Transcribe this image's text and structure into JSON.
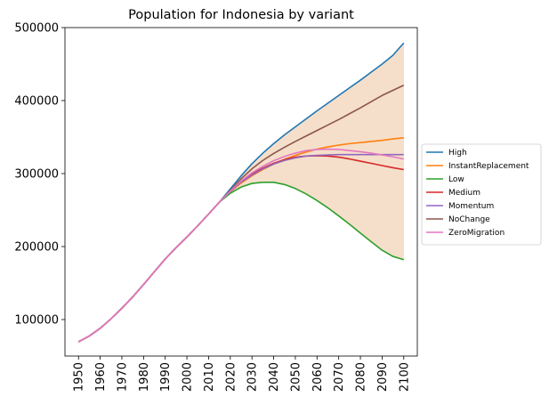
{
  "chart_data": {
    "type": "line",
    "title": "Population for Indonesia by variant",
    "xlabel": "",
    "ylabel": "",
    "xlim": [
      1943.75,
      2106.25
    ],
    "ylim": [
      50000,
      500000
    ],
    "x_ticks": [
      1950,
      1960,
      1970,
      1980,
      1990,
      2000,
      2010,
      2020,
      2030,
      2040,
      2050,
      2060,
      2070,
      2080,
      2090,
      2100
    ],
    "y_ticks": [
      100000,
      200000,
      300000,
      400000,
      500000
    ],
    "grid": false,
    "legend_position": "center-right outside",
    "band": {
      "lower_series": "Low",
      "upper_series": "High",
      "color": "#f5dfca"
    },
    "x": [
      1950,
      1955,
      1960,
      1965,
      1970,
      1975,
      1980,
      1985,
      1990,
      1995,
      2000,
      2005,
      2010,
      2015,
      2020,
      2025,
      2030,
      2035,
      2040,
      2045,
      2050,
      2055,
      2060,
      2065,
      2070,
      2075,
      2080,
      2085,
      2090,
      2095,
      2100
    ],
    "series": [
      {
        "name": "High",
        "color": "#1f77b4",
        "values": [
          69500,
          77500,
          88000,
          101000,
          115500,
          131000,
          148000,
          165500,
          183000,
          198500,
          213000,
          228500,
          244500,
          261000,
          279000,
          297000,
          313500,
          328000,
          341000,
          353000,
          364000,
          375000,
          386000,
          396500,
          407000,
          417500,
          428000,
          439000,
          450000,
          462000,
          479000
        ]
      },
      {
        "name": "InstantReplacement",
        "color": "#ff7f0e",
        "values": [
          69500,
          77500,
          88000,
          101000,
          115500,
          131000,
          148000,
          165500,
          183000,
          198500,
          213000,
          228500,
          244500,
          261000,
          275000,
          287000,
          297000,
          305500,
          313000,
          319500,
          325000,
          329500,
          333500,
          336500,
          339000,
          341000,
          342500,
          344000,
          345500,
          347500,
          349000
        ]
      },
      {
        "name": "Low",
        "color": "#2ca02c",
        "values": [
          69500,
          77500,
          88000,
          101000,
          115500,
          131000,
          148000,
          165500,
          183000,
          198500,
          213000,
          228500,
          244500,
          261000,
          273000,
          281500,
          286500,
          288000,
          288000,
          285000,
          279500,
          272000,
          263000,
          253000,
          242000,
          230500,
          218500,
          206500,
          195000,
          186500,
          182000
        ]
      },
      {
        "name": "Medium",
        "color": "#d62728",
        "values": [
          69500,
          77500,
          88000,
          101000,
          115500,
          131000,
          148000,
          165500,
          183000,
          198500,
          213000,
          228500,
          244500,
          261000,
          276000,
          289000,
          299500,
          307500,
          314000,
          319000,
          322500,
          324000,
          324500,
          324000,
          322500,
          320000,
          317000,
          314000,
          311000,
          308000,
          305500
        ]
      },
      {
        "name": "Momentum",
        "color": "#9467bd",
        "values": [
          69500,
          77500,
          88000,
          101000,
          115500,
          131000,
          148000,
          165500,
          183000,
          198500,
          213000,
          228500,
          244500,
          261000,
          275500,
          288500,
          298000,
          306500,
          313000,
          318000,
          321500,
          324000,
          325000,
          325500,
          326000,
          326000,
          326000,
          326000,
          326000,
          326000,
          326000
        ]
      },
      {
        "name": "NoChange",
        "color": "#8c564b",
        "values": [
          69500,
          77500,
          88000,
          101000,
          115500,
          131000,
          148000,
          165500,
          183000,
          198500,
          213000,
          228500,
          244500,
          261000,
          277000,
          293000,
          306500,
          318000,
          327500,
          336000,
          344000,
          351500,
          359000,
          366500,
          374000,
          382000,
          390000,
          398500,
          407000,
          414000,
          421000
        ]
      },
      {
        "name": "ZeroMigration",
        "color": "#e377c2",
        "values": [
          69500,
          77500,
          88000,
          101000,
          115500,
          131000,
          148000,
          165500,
          183000,
          198500,
          213000,
          228500,
          244500,
          261000,
          276000,
          290000,
          301000,
          310000,
          317500,
          323500,
          328000,
          331500,
          333000,
          333500,
          333000,
          331500,
          330000,
          328000,
          325500,
          323000,
          320000
        ]
      }
    ]
  }
}
